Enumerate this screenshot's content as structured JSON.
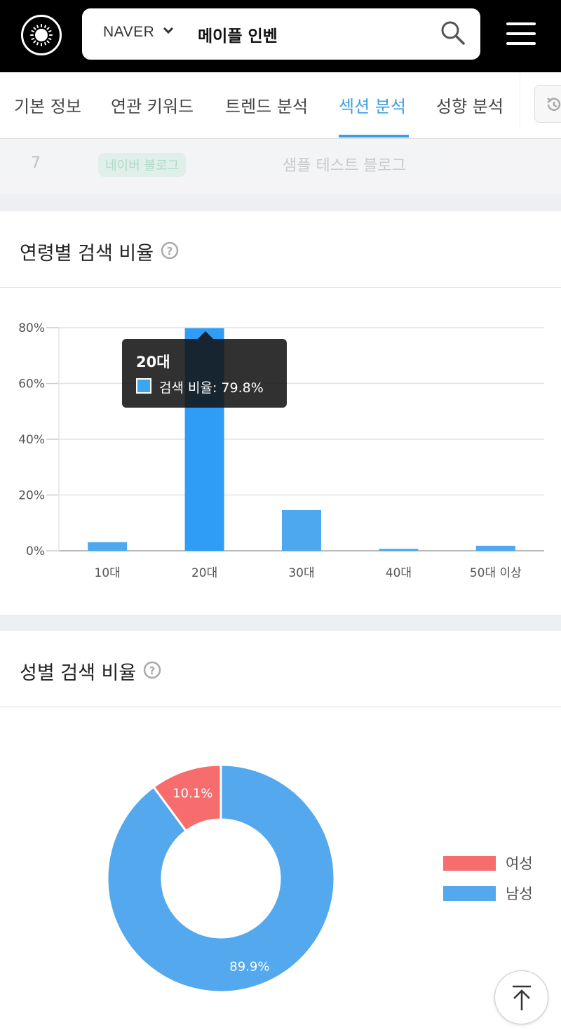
{
  "header": {
    "engine": "NAVER",
    "query": "메이플 인벤"
  },
  "tabs": [
    {
      "label": "기본 정보"
    },
    {
      "label": "연관 키워드"
    },
    {
      "label": "트렌드 분석"
    },
    {
      "label": "섹션 분석",
      "active": true
    },
    {
      "label": "성향 분석"
    }
  ],
  "faded_row": {
    "rank": "7",
    "badge": "네이버 블로그",
    "title": "샘플 테스트 블로그"
  },
  "age_card": {
    "title": "연령별 검색 비율",
    "tooltip": {
      "title": "20대",
      "text": "검색 비율: 79.8%"
    }
  },
  "gender_card": {
    "title": "성별 검색 비율",
    "legend": [
      {
        "label": "여성",
        "color": "#f76d6d"
      },
      {
        "label": "남성",
        "color": "#53a8ee"
      }
    ]
  },
  "colors": {
    "accent": "#3d9fe0",
    "bar": "#4ea8f0",
    "bar_highlight": "#2f9cf5",
    "female": "#f76d6d",
    "male": "#53a8ee"
  },
  "chart_data": [
    {
      "type": "bar",
      "title": "연령별 검색 비율",
      "categories": [
        "10대",
        "20대",
        "30대",
        "40대",
        "50대 이상"
      ],
      "values": [
        3.1,
        79.8,
        14.6,
        0.7,
        1.8
      ],
      "ylim": [
        0,
        80
      ],
      "yticks": [
        "0%",
        "20%",
        "40%",
        "60%",
        "80%"
      ],
      "grid": true,
      "highlight_index": 1
    },
    {
      "type": "pie",
      "title": "성별 검색 비율",
      "labels": [
        "여성",
        "남성"
      ],
      "values": [
        10.1,
        89.9
      ],
      "value_labels": [
        "10.1%",
        "89.9%"
      ],
      "legend": "right"
    }
  ]
}
